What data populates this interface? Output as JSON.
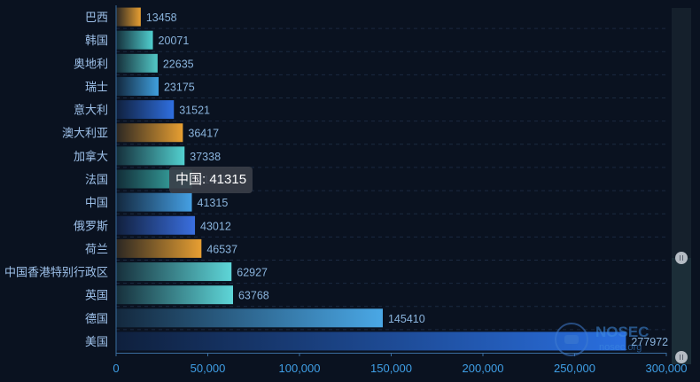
{
  "chart_data": {
    "type": "bar",
    "orientation": "horizontal",
    "categories": [
      "美国",
      "德国",
      "英国",
      "中国香港特别行政区",
      "荷兰",
      "俄罗斯",
      "中国",
      "法国",
      "加拿大",
      "澳大利亚",
      "意大利",
      "瑞士",
      "奥地利",
      "韩国",
      "巴西"
    ],
    "values": [
      277972,
      145410,
      63768,
      62927,
      46537,
      43012,
      41315,
      41315,
      37338,
      36417,
      31521,
      23175,
      22635,
      20071,
      13458
    ],
    "colors": [
      "#2a6fe0",
      "#4aa8e6",
      "#5ed6d8",
      "#5ed6d8",
      "#e79f32",
      "#3a6fe0",
      "#45a0e4",
      "#3fbfb8",
      "#52d0cf",
      "#e79f32",
      "#2f6fe0",
      "#3f9fdd",
      "#52c8c6",
      "#50cfcf",
      "#e79f32"
    ],
    "xlim": [
      0,
      300000
    ],
    "xticks": [
      0,
      50000,
      100000,
      150000,
      200000,
      250000,
      300000
    ],
    "xtick_labels": [
      "0",
      "50,000",
      "100,000",
      "150,000",
      "200,000",
      "250,000",
      "300,000"
    ],
    "grid": true,
    "title": "",
    "xlabel": "",
    "ylabel": ""
  },
  "tooltip": {
    "text": "中国: 41315"
  },
  "watermark": {
    "brand": "NOSEC",
    "url": "nosec.org"
  },
  "data_zoom": {
    "start_percent": 0,
    "end_percent": 70
  }
}
